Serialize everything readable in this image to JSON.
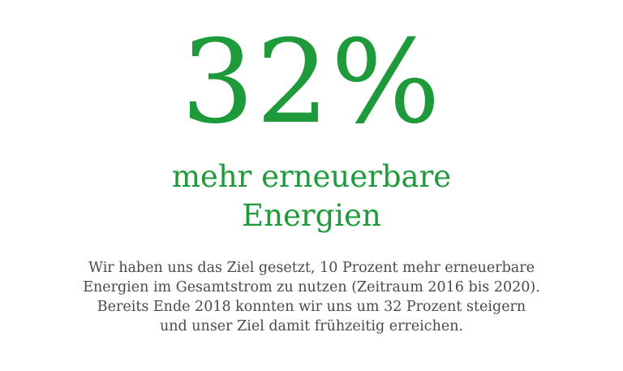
{
  "stat": {
    "value": "32%",
    "headline_lines": [
      "mehr erneuerbare",
      "Energien"
    ],
    "description_lines": [
      "Wir haben uns das Ziel gesetzt, 10 Prozent mehr erneuerbare",
      "Energien im Gesamtstrom zu nutzen (Zeitraum 2016 bis 2020).",
      "Bereits Ende 2018 konnten wir uns um 32 Prozent steigern",
      "und unser Ziel damit frühzeitig erreichen."
    ]
  },
  "colors": {
    "accent_green": "#1e9a3a",
    "body_text": "#4a4a4a",
    "background": "#ffffff"
  }
}
